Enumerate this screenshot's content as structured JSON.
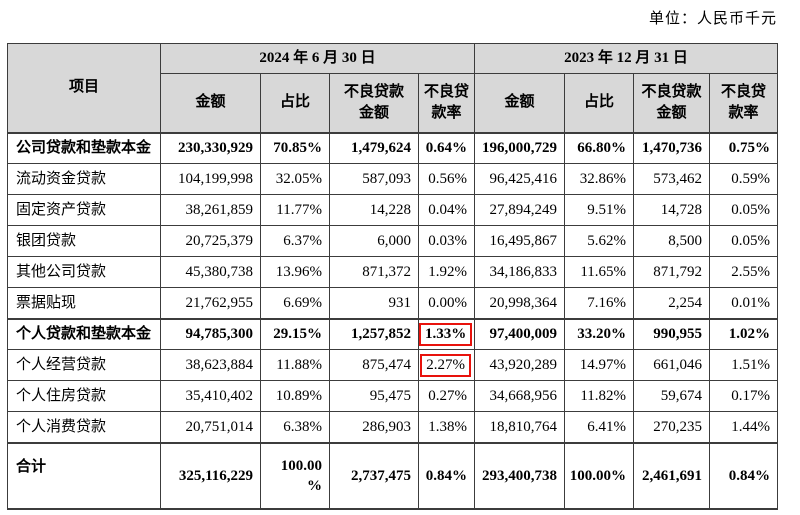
{
  "unit_label": "单位：人民币千元",
  "colors": {
    "header_bg": "#d8d8d8",
    "border": "#3c3c3c",
    "highlight_box": "#e8120c",
    "text": "#000000"
  },
  "table": {
    "item_header": "项目",
    "period_headers": [
      "2024 年 6 月 30 日",
      "2023 年 12 月 31 日"
    ],
    "sub_headers": [
      "金额",
      "占比",
      "不良贷款\n金额",
      "不良贷\n款率"
    ],
    "rows": [
      {
        "label": "公司贷款和垫款本金",
        "bold": true,
        "section_start": true,
        "cells": [
          "230,330,929",
          "70.85%",
          "1,479,624",
          "0.64%",
          "196,000,729",
          "66.80%",
          "1,470,736",
          "0.75%"
        ]
      },
      {
        "label": "流动资金贷款",
        "bold": false,
        "cells": [
          "104,199,998",
          "32.05%",
          "587,093",
          "0.56%",
          "96,425,416",
          "32.86%",
          "573,462",
          "0.59%"
        ]
      },
      {
        "label": "固定资产贷款",
        "bold": false,
        "cells": [
          "38,261,859",
          "11.77%",
          "14,228",
          "0.04%",
          "27,894,249",
          "9.51%",
          "14,728",
          "0.05%"
        ]
      },
      {
        "label": "银团贷款",
        "bold": false,
        "cells": [
          "20,725,379",
          "6.37%",
          "6,000",
          "0.03%",
          "16,495,867",
          "5.62%",
          "8,500",
          "0.05%"
        ]
      },
      {
        "label": "其他公司贷款",
        "bold": false,
        "cells": [
          "45,380,738",
          "13.96%",
          "871,372",
          "1.92%",
          "34,186,833",
          "11.65%",
          "871,792",
          "2.55%"
        ]
      },
      {
        "label": "票据贴现",
        "bold": false,
        "cells": [
          "21,762,955",
          "6.69%",
          "931",
          "0.00%",
          "20,998,364",
          "7.16%",
          "2,254",
          "0.01%"
        ]
      },
      {
        "label": "个人贷款和垫款本金",
        "bold": true,
        "section_start": true,
        "highlight_cells": [
          3
        ],
        "cells": [
          "94,785,300",
          "29.15%",
          "1,257,852",
          "1.33%",
          "97,400,009",
          "33.20%",
          "990,955",
          "1.02%"
        ]
      },
      {
        "label": "个人经营贷款",
        "bold": false,
        "highlight_cells": [
          3
        ],
        "cells": [
          "38,623,884",
          "11.88%",
          "875,474",
          "2.27%",
          "43,920,289",
          "14.97%",
          "661,046",
          "1.51%"
        ]
      },
      {
        "label": "个人住房贷款",
        "bold": false,
        "cells": [
          "35,410,402",
          "10.89%",
          "95,475",
          "0.27%",
          "34,668,956",
          "11.82%",
          "59,674",
          "0.17%"
        ]
      },
      {
        "label": "个人消费贷款",
        "bold": false,
        "cells": [
          "20,751,014",
          "6.38%",
          "286,903",
          "1.38%",
          "18,810,764",
          "6.41%",
          "270,235",
          "1.44%"
        ]
      },
      {
        "label": "合计",
        "bold": true,
        "section_start": true,
        "total": true,
        "cells": [
          "325,116,229",
          "100.00\n%",
          "2,737,475",
          "0.84%",
          "293,400,738",
          "100.00%",
          "2,461,691",
          "0.84%"
        ]
      }
    ]
  }
}
